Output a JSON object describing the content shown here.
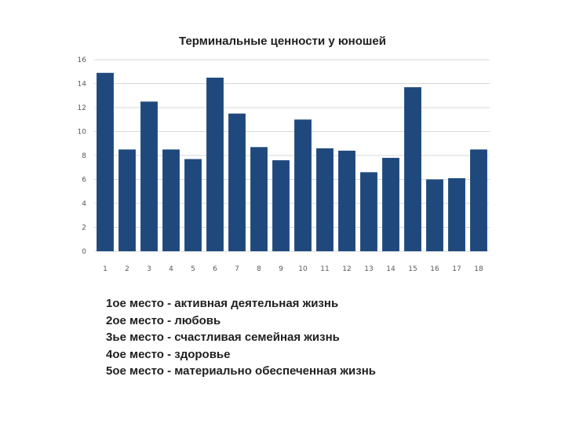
{
  "chart_data": {
    "type": "bar",
    "title": "Терминальные ценности у юношей",
    "categories": [
      "1",
      "2",
      "3",
      "4",
      "5",
      "6",
      "7",
      "8",
      "9",
      "10",
      "11",
      "12",
      "13",
      "14",
      "15",
      "16",
      "17",
      "18"
    ],
    "values": [
      14.9,
      8.5,
      12.5,
      8.5,
      7.7,
      14.5,
      11.5,
      8.7,
      7.6,
      11.0,
      8.6,
      8.4,
      6.6,
      7.8,
      13.7,
      6.0,
      6.1,
      8.5
    ],
    "ylim": [
      0,
      16
    ],
    "yticks": [
      "0",
      "2",
      "4",
      "6",
      "8",
      "10",
      "12",
      "14",
      "16"
    ],
    "grid": true,
    "bar_color": "#1f497d",
    "grid_color": "#d9d9d9"
  },
  "notes": [
    "1ое место - активная деятельная жизнь",
    "2ое место - любовь",
    "3ье место - счастливая семейная жизнь",
    "4ое место - здоровье",
    "5ое место - материально обеспеченная жизнь"
  ]
}
